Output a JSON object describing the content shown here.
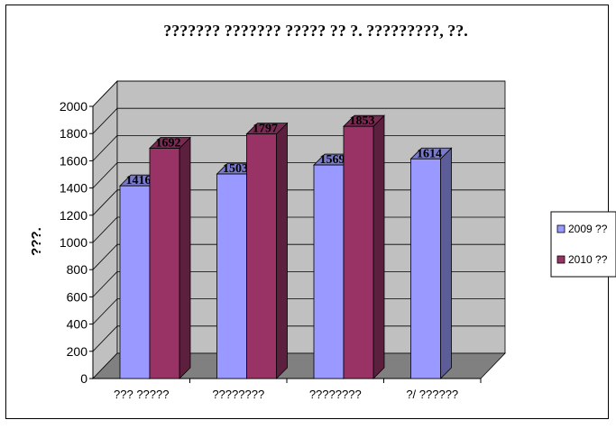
{
  "chart_data": {
    "type": "bar",
    "title": "??????? ??????? ????? ?? ?. ?????????, ??.",
    "ylabel": "???.",
    "xlabel": "",
    "categories": [
      "??? ?????",
      "????????",
      "????????",
      "?/ ??????"
    ],
    "series": [
      {
        "name": "2009 ??",
        "values": [
          1416,
          1503,
          1569,
          1614
        ]
      },
      {
        "name": "2010 ??",
        "values": [
          1692,
          1797,
          1853,
          null
        ]
      }
    ],
    "ylim": [
      0,
      2000
    ],
    "yticks": [
      "0",
      "200",
      "400",
      "600",
      "800",
      "1000",
      "1200",
      "1400",
      "1600",
      "1800",
      "2000"
    ],
    "data_labels": [
      [
        "1416",
        "1503",
        "1569",
        "1614"
      ],
      [
        "1692",
        "1797",
        "1853",
        ""
      ]
    ],
    "grid": true,
    "legend_position": "right",
    "style": "3d-clustered-column",
    "colors": {
      "series_2009": "#9999ff",
      "series_2010": "#993366",
      "wall": "#c0c0c0",
      "floor": "#808080",
      "grid": "#000000"
    }
  }
}
